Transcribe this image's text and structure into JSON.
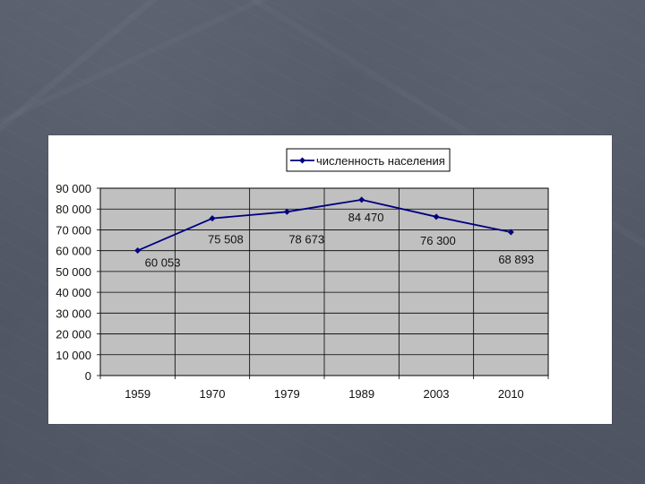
{
  "chart_data": {
    "type": "line",
    "categories": [
      "1959",
      "1970",
      "1979",
      "1989",
      "2003",
      "2010"
    ],
    "series": [
      {
        "name": "численность населения",
        "values": [
          60053,
          75508,
          78673,
          84470,
          76300,
          68893
        ],
        "labels": [
          "60 053",
          "75 508",
          "78 673",
          "84 470",
          "76 300",
          "68 893"
        ]
      }
    ],
    "y_ticks": [
      0,
      10000,
      20000,
      30000,
      40000,
      50000,
      60000,
      70000,
      80000,
      90000
    ],
    "y_tick_labels": [
      "0",
      "10 000",
      "20 000",
      "30 000",
      "40 000",
      "50 000",
      "60 000",
      "70 000",
      "80 000",
      "90 000"
    ],
    "ylim": [
      0,
      90000
    ],
    "grid": true,
    "legend_position": "top",
    "title": "",
    "xlabel": "",
    "ylabel": ""
  },
  "colors": {
    "background": "#525866",
    "card": "#ffffff",
    "plot_area": "#c0c0c0",
    "grid": "#000000",
    "series": "#000080",
    "text": "#111111"
  },
  "icons": {
    "legend_marker": "diamond-marker-icon"
  }
}
